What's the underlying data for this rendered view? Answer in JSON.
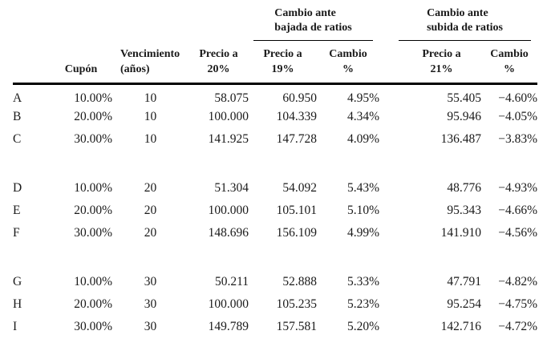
{
  "colors": {
    "background": "#ffffff",
    "text": "#1a1a1a",
    "rule": "#000000"
  },
  "table": {
    "group_headers": [
      "Cambio ante\nbajada de ratios",
      "Cambio ante\nsubida de ratios"
    ],
    "column_headers": [
      "",
      "Cupón",
      "Vencimiento\n(años)",
      "Precio a\n20%",
      "Precio a\n19%",
      "Cambio\n%",
      "Precio a\n21%",
      "Cambio\n%"
    ],
    "groups": [
      {
        "rows": [
          {
            "cells": [
              "A",
              "10.00%",
              "10",
              "58.075",
              "60.950",
              "4.95%",
              "55.405",
              "−4.60%"
            ]
          },
          {
            "cells": [
              "B",
              "20.00%",
              "10",
              "100.000",
              "104.339",
              "4.34%",
              "95.946",
              "−4.05%"
            ]
          },
          {
            "cells": [
              "C",
              "30.00%",
              "10",
              "141.925",
              "147.728",
              "4.09%",
              "136.487",
              "−3.83%"
            ]
          }
        ]
      },
      {
        "rows": [
          {
            "cells": [
              "D",
              "10.00%",
              "20",
              "51.304",
              "54.092",
              "5.43%",
              "48.776",
              "−4.93%"
            ]
          },
          {
            "cells": [
              "E",
              "20.00%",
              "20",
              "100.000",
              "105.101",
              "5.10%",
              "95.343",
              "−4.66%"
            ]
          },
          {
            "cells": [
              "F",
              "30.00%",
              "20",
              "148.696",
              "156.109",
              "4.99%",
              "141.910",
              "−4.56%"
            ]
          }
        ]
      },
      {
        "rows": [
          {
            "cells": [
              "G",
              "10.00%",
              "30",
              "50.211",
              "52.888",
              "5.33%",
              "47.791",
              "−4.82%"
            ]
          },
          {
            "cells": [
              "H",
              "20.00%",
              "30",
              "100.000",
              "105.235",
              "5.23%",
              "95.254",
              "−4.75%"
            ]
          },
          {
            "cells": [
              "I",
              "30.00%",
              "30",
              "149.789",
              "157.581",
              "5.20%",
              "142.716",
              "−4.72%"
            ]
          }
        ]
      }
    ]
  }
}
